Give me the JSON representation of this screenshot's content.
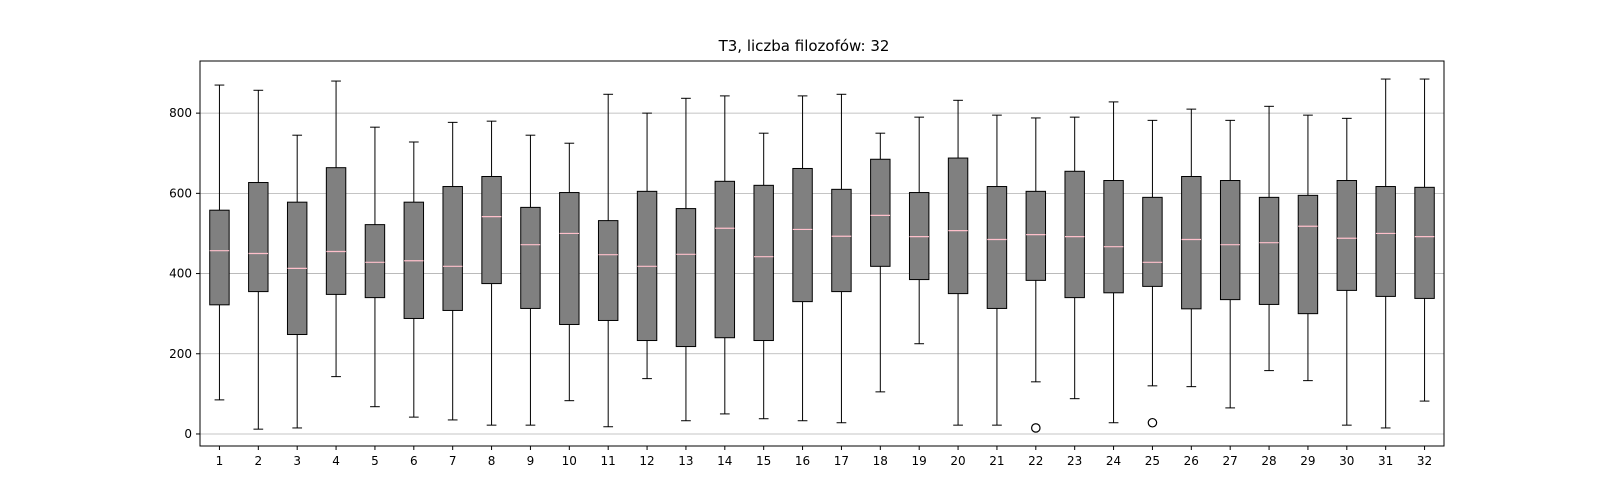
{
  "chart_data": {
    "type": "box",
    "title": "T3, liczba filozofów: 32",
    "xlabel": "",
    "ylabel": "",
    "categories": [
      "1",
      "2",
      "3",
      "4",
      "5",
      "6",
      "7",
      "8",
      "9",
      "10",
      "11",
      "12",
      "13",
      "14",
      "15",
      "16",
      "17",
      "18",
      "19",
      "20",
      "21",
      "22",
      "23",
      "24",
      "25",
      "26",
      "27",
      "28",
      "29",
      "30",
      "31",
      "32"
    ],
    "ylim": [
      -30,
      930
    ],
    "yticks": [
      0,
      200,
      400,
      600,
      800
    ],
    "grid": "y",
    "colors": {
      "box_fill": "#808080",
      "box_edge": "#000000",
      "median": "#ffc0cb",
      "grid": "#b0b0b0"
    },
    "boxes": [
      {
        "whislo": 85,
        "q1": 322,
        "med": 457,
        "q3": 558,
        "whishi": 870,
        "fliers": []
      },
      {
        "whislo": 12,
        "q1": 355,
        "med": 450,
        "q3": 627,
        "whishi": 857,
        "fliers": []
      },
      {
        "whislo": 15,
        "q1": 248,
        "med": 413,
        "q3": 578,
        "whishi": 745,
        "fliers": []
      },
      {
        "whislo": 143,
        "q1": 348,
        "med": 455,
        "q3": 664,
        "whishi": 880,
        "fliers": []
      },
      {
        "whislo": 68,
        "q1": 340,
        "med": 428,
        "q3": 522,
        "whishi": 765,
        "fliers": []
      },
      {
        "whislo": 42,
        "q1": 288,
        "med": 432,
        "q3": 578,
        "whishi": 728,
        "fliers": []
      },
      {
        "whislo": 35,
        "q1": 308,
        "med": 418,
        "q3": 617,
        "whishi": 777,
        "fliers": []
      },
      {
        "whislo": 22,
        "q1": 375,
        "med": 542,
        "q3": 642,
        "whishi": 780,
        "fliers": []
      },
      {
        "whislo": 22,
        "q1": 313,
        "med": 472,
        "q3": 565,
        "whishi": 745,
        "fliers": []
      },
      {
        "whislo": 83,
        "q1": 273,
        "med": 500,
        "q3": 602,
        "whishi": 725,
        "fliers": []
      },
      {
        "whislo": 18,
        "q1": 283,
        "med": 447,
        "q3": 532,
        "whishi": 847,
        "fliers": []
      },
      {
        "whislo": 138,
        "q1": 233,
        "med": 418,
        "q3": 605,
        "whishi": 800,
        "fliers": []
      },
      {
        "whislo": 33,
        "q1": 218,
        "med": 448,
        "q3": 562,
        "whishi": 837,
        "fliers": []
      },
      {
        "whislo": 50,
        "q1": 240,
        "med": 513,
        "q3": 630,
        "whishi": 843,
        "fliers": []
      },
      {
        "whislo": 38,
        "q1": 233,
        "med": 442,
        "q3": 620,
        "whishi": 750,
        "fliers": []
      },
      {
        "whislo": 33,
        "q1": 330,
        "med": 510,
        "q3": 662,
        "whishi": 843,
        "fliers": []
      },
      {
        "whislo": 28,
        "q1": 355,
        "med": 493,
        "q3": 610,
        "whishi": 847,
        "fliers": []
      },
      {
        "whislo": 105,
        "q1": 418,
        "med": 545,
        "q3": 685,
        "whishi": 750,
        "fliers": []
      },
      {
        "whislo": 225,
        "q1": 385,
        "med": 492,
        "q3": 602,
        "whishi": 790,
        "fliers": []
      },
      {
        "whislo": 22,
        "q1": 350,
        "med": 507,
        "q3": 688,
        "whishi": 832,
        "fliers": []
      },
      {
        "whislo": 22,
        "q1": 313,
        "med": 485,
        "q3": 617,
        "whishi": 795,
        "fliers": []
      },
      {
        "whislo": 130,
        "q1": 383,
        "med": 497,
        "q3": 605,
        "whishi": 788,
        "fliers": [
          15
        ]
      },
      {
        "whislo": 88,
        "q1": 340,
        "med": 492,
        "q3": 655,
        "whishi": 790,
        "fliers": []
      },
      {
        "whislo": 28,
        "q1": 352,
        "med": 467,
        "q3": 632,
        "whishi": 828,
        "fliers": []
      },
      {
        "whislo": 120,
        "q1": 368,
        "med": 428,
        "q3": 590,
        "whishi": 782,
        "fliers": [
          28
        ]
      },
      {
        "whislo": 118,
        "q1": 312,
        "med": 485,
        "q3": 642,
        "whishi": 810,
        "fliers": []
      },
      {
        "whislo": 65,
        "q1": 335,
        "med": 472,
        "q3": 632,
        "whishi": 782,
        "fliers": []
      },
      {
        "whislo": 158,
        "q1": 323,
        "med": 477,
        "q3": 590,
        "whishi": 817,
        "fliers": []
      },
      {
        "whislo": 133,
        "q1": 300,
        "med": 518,
        "q3": 595,
        "whishi": 795,
        "fliers": []
      },
      {
        "whislo": 22,
        "q1": 358,
        "med": 488,
        "q3": 632,
        "whishi": 787,
        "fliers": []
      },
      {
        "whislo": 15,
        "q1": 343,
        "med": 500,
        "q3": 617,
        "whishi": 885,
        "fliers": []
      },
      {
        "whislo": 82,
        "q1": 338,
        "med": 492,
        "q3": 615,
        "whishi": 885,
        "fliers": []
      }
    ]
  }
}
